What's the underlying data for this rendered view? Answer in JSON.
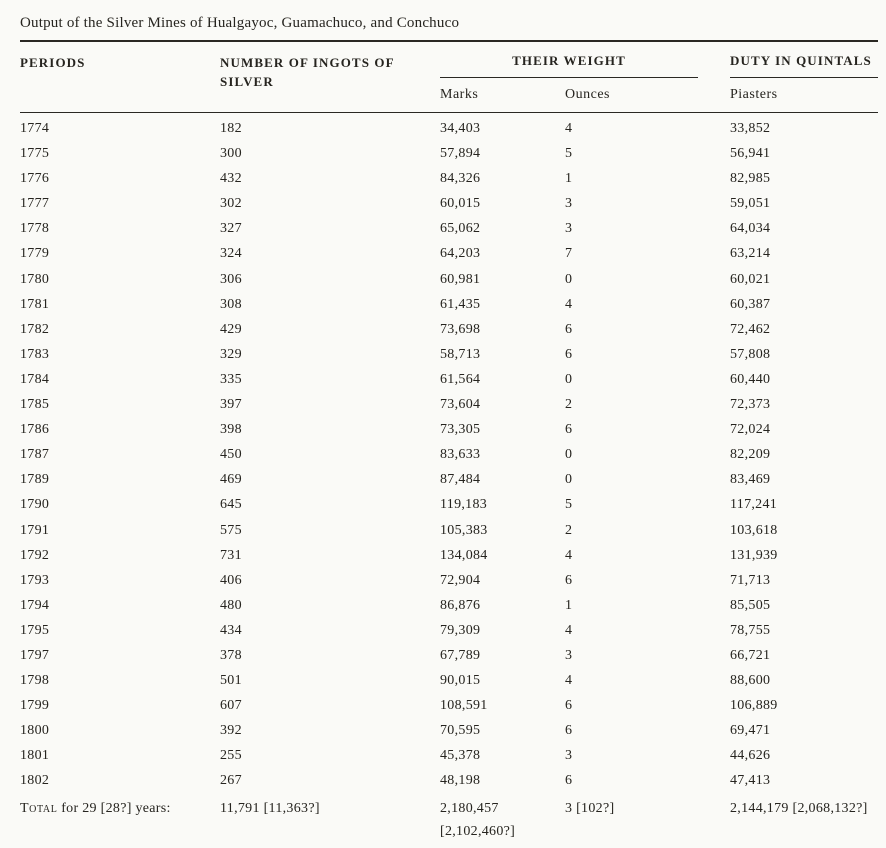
{
  "title": "Output of the Silver Mines of Hualgayoc, Guamachuco, and Conchuco",
  "colors": {
    "background": "#fafaf7",
    "text": "#26241f",
    "rule": "#2a2823"
  },
  "table": {
    "columns": {
      "periods": "PERIODS",
      "ingots": "NUMBER OF INGOTS OF SILVER",
      "weight_group": "THEIR WEIGHT",
      "duty_group": "DUTY IN QUINTALS",
      "marks": "Marks",
      "ounces": "Ounces",
      "piasters": "Piasters"
    },
    "column_keys": [
      "period",
      "ingots",
      "marks",
      "ounces",
      "piasters"
    ],
    "rows": [
      [
        "1774",
        "182",
        "34,403",
        "4",
        "33,852"
      ],
      [
        "1775",
        "300",
        "57,894",
        "5",
        "56,941"
      ],
      [
        "1776",
        "432",
        "84,326",
        "1",
        "82,985"
      ],
      [
        "1777",
        "302",
        "60,015",
        "3",
        "59,051"
      ],
      [
        "1778",
        "327",
        "65,062",
        "3",
        "64,034"
      ],
      [
        "1779",
        "324",
        "64,203",
        "7",
        "63,214"
      ],
      [
        "1780",
        "306",
        "60,981",
        "0",
        "60,021"
      ],
      [
        "1781",
        "308",
        "61,435",
        "4",
        "60,387"
      ],
      [
        "1782",
        "429",
        "73,698",
        "6",
        "72,462"
      ],
      [
        "1783",
        "329",
        "58,713",
        "6",
        "57,808"
      ],
      [
        "1784",
        "335",
        "61,564",
        "0",
        "60,440"
      ],
      [
        "1785",
        "397",
        "73,604",
        "2",
        "72,373"
      ],
      [
        "1786",
        "398",
        "73,305",
        "6",
        "72,024"
      ],
      [
        "1787",
        "450",
        "83,633",
        "0",
        "82,209"
      ],
      [
        "1789",
        "469",
        "87,484",
        "0",
        "83,469"
      ],
      [
        "1790",
        "645",
        "119,183",
        "5",
        "117,241"
      ],
      [
        "1791",
        "575",
        "105,383",
        "2",
        "103,618"
      ],
      [
        "1792",
        "731",
        "134,084",
        "4",
        "131,939"
      ],
      [
        "1793",
        "406",
        "72,904",
        "6",
        "71,713"
      ],
      [
        "1794",
        "480",
        "86,876",
        "1",
        "85,505"
      ],
      [
        "1795",
        "434",
        "79,309",
        "4",
        "78,755"
      ],
      [
        "1797",
        "378",
        "67,789",
        "3",
        "66,721"
      ],
      [
        "1798",
        "501",
        "90,015",
        "4",
        "88,600"
      ],
      [
        "1799",
        "607",
        "108,591",
        "6",
        "106,889"
      ],
      [
        "1800",
        "392",
        "70,595",
        "6",
        "69,471"
      ],
      [
        "1801",
        "255",
        "45,378",
        "3",
        "44,626"
      ],
      [
        "1802",
        "267",
        "48,198",
        "6",
        "47,413"
      ]
    ],
    "total": {
      "label_lead": "Total",
      "label_rest": " for 29 [28?] years:",
      "ingots": "11,791 [11,363?]",
      "marks_line1": "2,180,457",
      "marks_line2": "[2,102,460?]",
      "ounces": "3 [102?]",
      "piasters": "2,144,179 [2,068,132?]"
    }
  }
}
